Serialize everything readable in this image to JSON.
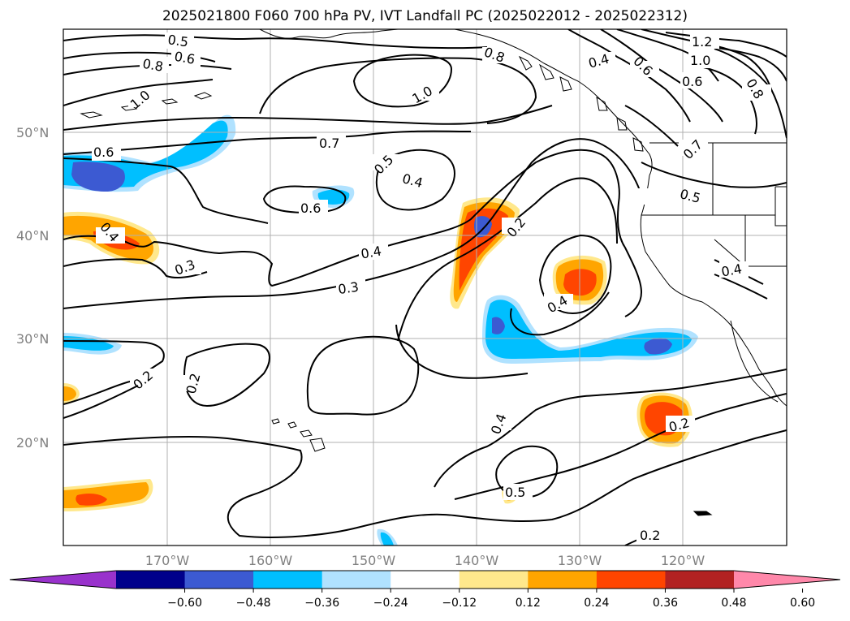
{
  "title": "2025021800 F060 700 hPa PV, IVT Landfall PC (2025022012 - 2025022312)",
  "map": {
    "lat_labels": [
      "50°N",
      "40°N",
      "30°N",
      "20°N"
    ],
    "lon_labels": [
      "170°W",
      "160°W",
      "150°W",
      "140°W",
      "130°W",
      "120°W"
    ],
    "gridlines": true,
    "contour_color": "#000000",
    "coastline_color": "#000000"
  },
  "contour_labels": [
    "0.5",
    "0.6",
    "0.8",
    "1.0",
    "1.0",
    "0.8",
    "0.4",
    "0.6",
    "1.2",
    "1.0",
    "0.6",
    "0.8",
    "0.7",
    "0.6",
    "0.7",
    "0.5",
    "0.4",
    "0.6",
    "0.4",
    "0.2",
    "0.3",
    "0.4",
    "0.3",
    "0.4",
    "0.5",
    "0.4",
    "0.2",
    "0.2",
    "0.4",
    "0.5",
    "0.2",
    "0.2"
  ],
  "colorbar": {
    "ticks": [
      "−0.60",
      "−0.48",
      "−0.36",
      "−0.24",
      "−0.12",
      "0.12",
      "0.24",
      "0.36",
      "0.48",
      "0.60"
    ],
    "colors": [
      "#9932cc",
      "#00008b",
      "#3c5ad2",
      "#00bfff",
      "#b0e2ff",
      "#ffffff",
      "#ffe88c",
      "#ffa500",
      "#ff4500",
      "#b22222",
      "#ff88aa"
    ],
    "extend": "both"
  }
}
